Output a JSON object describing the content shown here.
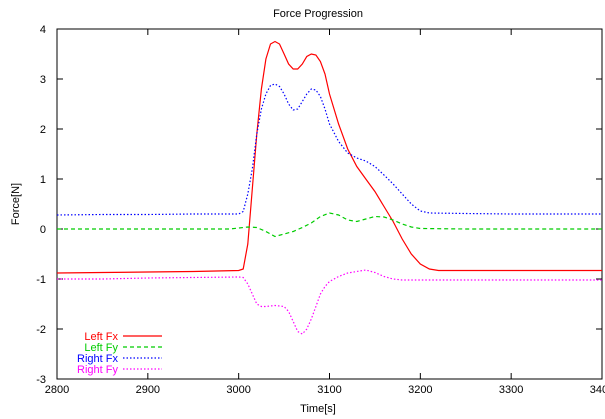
{
  "chart_data": {
    "type": "line",
    "title": "Force Progression",
    "xlabel": "Time[s]",
    "ylabel": "Force[N]",
    "xlim": [
      2800,
      3400
    ],
    "ylim": [
      -3,
      4
    ],
    "xticks": [
      2800,
      2900,
      3000,
      3100,
      3200,
      3300,
      3400
    ],
    "yticks": [
      -3,
      -2,
      -1,
      0,
      1,
      2,
      3,
      4
    ],
    "xtick_labels": [
      "2800",
      "2900",
      "3000",
      "3100",
      "3200",
      "3300",
      "3400"
    ],
    "ytick_labels": [
      "-3",
      "-2",
      "-1",
      "0",
      "1",
      "2",
      "3",
      "4"
    ],
    "grid": false,
    "legend_position": "bottom-left",
    "series": [
      {
        "name": "Left Fx",
        "color": "#ff0000",
        "style": "solid",
        "x": [
          2800,
          2850,
          2900,
          2950,
          3000,
          3005,
          3010,
          3015,
          3020,
          3025,
          3030,
          3035,
          3040,
          3045,
          3050,
          3055,
          3060,
          3065,
          3070,
          3075,
          3080,
          3085,
          3090,
          3095,
          3100,
          3110,
          3120,
          3130,
          3140,
          3150,
          3160,
          3170,
          3180,
          3190,
          3200,
          3210,
          3220,
          3250,
          3300,
          3350,
          3400
        ],
        "y": [
          -0.88,
          -0.87,
          -0.86,
          -0.85,
          -0.83,
          -0.8,
          -0.3,
          0.8,
          1.9,
          2.8,
          3.4,
          3.7,
          3.75,
          3.7,
          3.5,
          3.3,
          3.2,
          3.2,
          3.3,
          3.45,
          3.5,
          3.48,
          3.35,
          3.1,
          2.7,
          2.1,
          1.6,
          1.25,
          1.0,
          0.75,
          0.45,
          0.15,
          -0.2,
          -0.5,
          -0.7,
          -0.8,
          -0.83,
          -0.83,
          -0.83,
          -0.83,
          -0.83
        ]
      },
      {
        "name": "Left Fy",
        "color": "#00cc00",
        "style": "dashed",
        "x": [
          2800,
          2900,
          2990,
          3000,
          3010,
          3020,
          3030,
          3040,
          3050,
          3060,
          3070,
          3080,
          3090,
          3100,
          3110,
          3120,
          3130,
          3140,
          3150,
          3160,
          3170,
          3180,
          3190,
          3200,
          3250,
          3300,
          3400
        ],
        "y": [
          0.0,
          0.0,
          0.0,
          0.02,
          0.04,
          0.03,
          -0.05,
          -0.15,
          -0.1,
          -0.05,
          0.03,
          0.12,
          0.25,
          0.32,
          0.28,
          0.18,
          0.15,
          0.2,
          0.25,
          0.24,
          0.18,
          0.1,
          0.04,
          0.01,
          0.0,
          0.0,
          0.0
        ]
      },
      {
        "name": "Right Fx",
        "color": "#0000ff",
        "style": "dotted",
        "x": [
          2800,
          2850,
          2900,
          2950,
          3000,
          3005,
          3010,
          3015,
          3020,
          3025,
          3030,
          3035,
          3040,
          3045,
          3050,
          3055,
          3060,
          3065,
          3070,
          3075,
          3080,
          3085,
          3090,
          3095,
          3100,
          3110,
          3120,
          3130,
          3140,
          3150,
          3160,
          3170,
          3180,
          3190,
          3200,
          3210,
          3250,
          3300,
          3350,
          3400
        ],
        "y": [
          0.28,
          0.29,
          0.29,
          0.3,
          0.3,
          0.35,
          0.7,
          1.2,
          1.9,
          2.4,
          2.7,
          2.87,
          2.9,
          2.85,
          2.7,
          2.5,
          2.38,
          2.4,
          2.55,
          2.7,
          2.8,
          2.78,
          2.65,
          2.4,
          2.1,
          1.75,
          1.52,
          1.42,
          1.36,
          1.25,
          1.08,
          0.9,
          0.7,
          0.5,
          0.36,
          0.32,
          0.31,
          0.3,
          0.3,
          0.3
        ]
      },
      {
        "name": "Right Fy",
        "color": "#ff00ff",
        "style": "dotted",
        "x": [
          2800,
          2850,
          2900,
          2950,
          3000,
          3005,
          3010,
          3015,
          3020,
          3025,
          3030,
          3040,
          3050,
          3055,
          3060,
          3065,
          3070,
          3075,
          3080,
          3085,
          3090,
          3095,
          3100,
          3110,
          3120,
          3130,
          3140,
          3150,
          3160,
          3170,
          3180,
          3190,
          3200,
          3250,
          3300,
          3350,
          3400
        ],
        "y": [
          -1.0,
          -1.0,
          -0.98,
          -0.97,
          -0.96,
          -0.97,
          -1.1,
          -1.3,
          -1.5,
          -1.55,
          -1.55,
          -1.53,
          -1.55,
          -1.65,
          -1.85,
          -2.05,
          -2.1,
          -2.0,
          -1.8,
          -1.55,
          -1.3,
          -1.15,
          -1.05,
          -0.95,
          -0.88,
          -0.85,
          -0.82,
          -0.87,
          -0.95,
          -1.0,
          -1.02,
          -1.02,
          -1.02,
          -1.02,
          -1.02,
          -1.02,
          -1.02
        ]
      }
    ]
  }
}
